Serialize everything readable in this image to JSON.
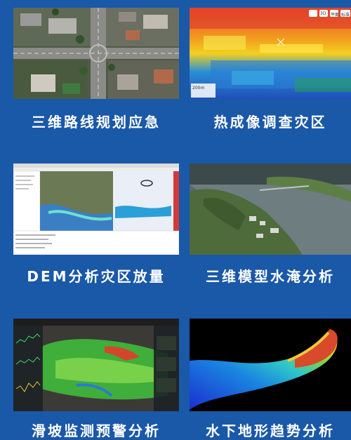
{
  "colors": {
    "background": "#1a58a8",
    "caption_text": "#ffffff"
  },
  "tiles": [
    {
      "caption": "三维路线规划应急",
      "image": "aerial-road-intersection-image"
    },
    {
      "caption": "热成像调查灾区",
      "image": "thermal-imaging-image",
      "overlay": {
        "scale": "200m",
        "buttons": [
          "3D",
          "平面",
          "标准"
        ]
      }
    },
    {
      "caption": "DEM分析灾区放量",
      "image": "dem-analysis-software-image"
    },
    {
      "caption": "三维模型水淹分析",
      "image": "3d-flood-model-image"
    },
    {
      "caption": "滑坡监测预警分析",
      "image": "landslide-monitoring-dashboard-image"
    },
    {
      "caption": "水下地形趋势分析",
      "image": "underwater-terrain-image"
    }
  ]
}
